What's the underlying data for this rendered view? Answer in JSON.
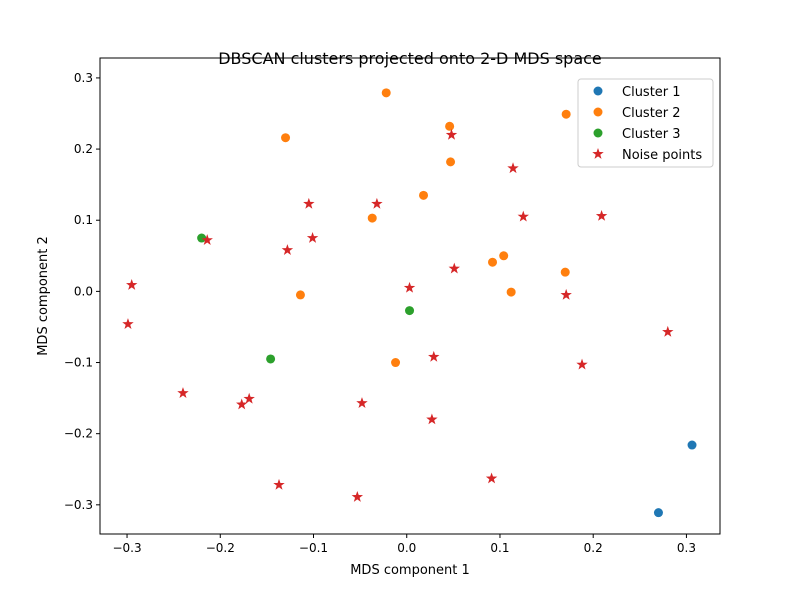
{
  "chart_data": {
    "type": "scatter",
    "title": "DBSCAN clusters projected onto 2-D MDS space",
    "xlabel": "MDS component 1",
    "ylabel": "MDS component 2",
    "xlim": [
      -0.329,
      0.336
    ],
    "ylim": [
      -0.341,
      0.328
    ],
    "xticks": [
      -0.3,
      -0.2,
      -0.1,
      0.0,
      0.1,
      0.2,
      0.3
    ],
    "xtick_labels": [
      "−0.3",
      "−0.2",
      "−0.1",
      "0.0",
      "0.1",
      "0.2",
      "0.3"
    ],
    "yticks": [
      -0.3,
      -0.2,
      -0.1,
      0.0,
      0.1,
      0.2,
      0.3
    ],
    "ytick_labels": [
      "−0.3",
      "−0.2",
      "−0.1",
      "0.0",
      "0.1",
      "0.2",
      "0.3"
    ],
    "grid": false,
    "legend_placement": "top-right",
    "series": [
      {
        "name": "Cluster 1",
        "marker": "circle",
        "color": "#1f77b4",
        "points": [
          [
            0.306,
            -0.216
          ],
          [
            0.27,
            -0.311
          ]
        ]
      },
      {
        "name": "Cluster 2",
        "marker": "circle",
        "color": "#ff7f0e",
        "points": [
          [
            -0.022,
            0.279
          ],
          [
            -0.13,
            0.216
          ],
          [
            0.046,
            0.232
          ],
          [
            0.171,
            0.249
          ],
          [
            0.047,
            0.182
          ],
          [
            0.018,
            0.135
          ],
          [
            -0.037,
            0.103
          ],
          [
            0.104,
            0.05
          ],
          [
            0.092,
            0.041
          ],
          [
            0.112,
            -0.001
          ],
          [
            0.17,
            0.027
          ],
          [
            -0.114,
            -0.005
          ],
          [
            -0.012,
            -0.1
          ]
        ]
      },
      {
        "name": "Cluster 3",
        "marker": "circle",
        "color": "#2ca02c",
        "points": [
          [
            -0.22,
            0.075
          ],
          [
            0.003,
            -0.027
          ],
          [
            -0.146,
            -0.095
          ]
        ]
      },
      {
        "name": "Noise points",
        "marker": "star",
        "color": "#d62728",
        "points": [
          [
            0.048,
            0.22
          ],
          [
            0.114,
            0.173
          ],
          [
            -0.105,
            0.123
          ],
          [
            -0.032,
            0.123
          ],
          [
            0.125,
            0.105
          ],
          [
            0.209,
            0.106
          ],
          [
            -0.214,
            0.072
          ],
          [
            -0.101,
            0.075
          ],
          [
            -0.128,
            0.058
          ],
          [
            -0.295,
            0.009
          ],
          [
            0.003,
            0.005
          ],
          [
            0.051,
            0.032
          ],
          [
            0.171,
            -0.005
          ],
          [
            -0.299,
            -0.046
          ],
          [
            0.28,
            -0.057
          ],
          [
            0.029,
            -0.092
          ],
          [
            0.188,
            -0.103
          ],
          [
            -0.24,
            -0.143
          ],
          [
            -0.169,
            -0.151
          ],
          [
            -0.177,
            -0.159
          ],
          [
            -0.048,
            -0.157
          ],
          [
            0.027,
            -0.18
          ],
          [
            -0.137,
            -0.272
          ],
          [
            0.091,
            -0.263
          ],
          [
            -0.053,
            -0.289
          ]
        ]
      }
    ]
  }
}
